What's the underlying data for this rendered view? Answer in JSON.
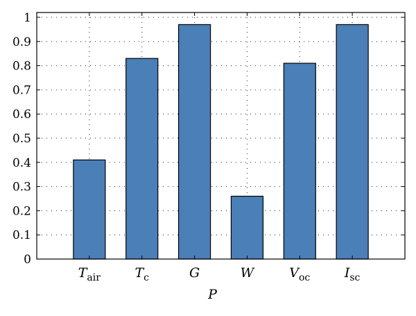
{
  "chart_data": {
    "type": "bar",
    "categories": [
      {
        "main": "T",
        "sub": "air"
      },
      {
        "main": "T",
        "sub": "c"
      },
      {
        "main": "G",
        "sub": ""
      },
      {
        "main": "W",
        "sub": ""
      },
      {
        "main": "V",
        "sub": "oc"
      },
      {
        "main": "I",
        "sub": "sc"
      }
    ],
    "values": [
      0.41,
      0.83,
      0.97,
      0.26,
      0.81,
      0.97
    ],
    "title": "",
    "xlabel": "P",
    "ylabel": "",
    "ylim": [
      0,
      1.02
    ],
    "yticks": [
      "0",
      "0.1",
      "0.2",
      "0.3",
      "0.4",
      "0.5",
      "0.6",
      "0.7",
      "0.8",
      "0.9",
      "1"
    ],
    "grid": "dotted",
    "bar_color": "#4a7fb8"
  }
}
